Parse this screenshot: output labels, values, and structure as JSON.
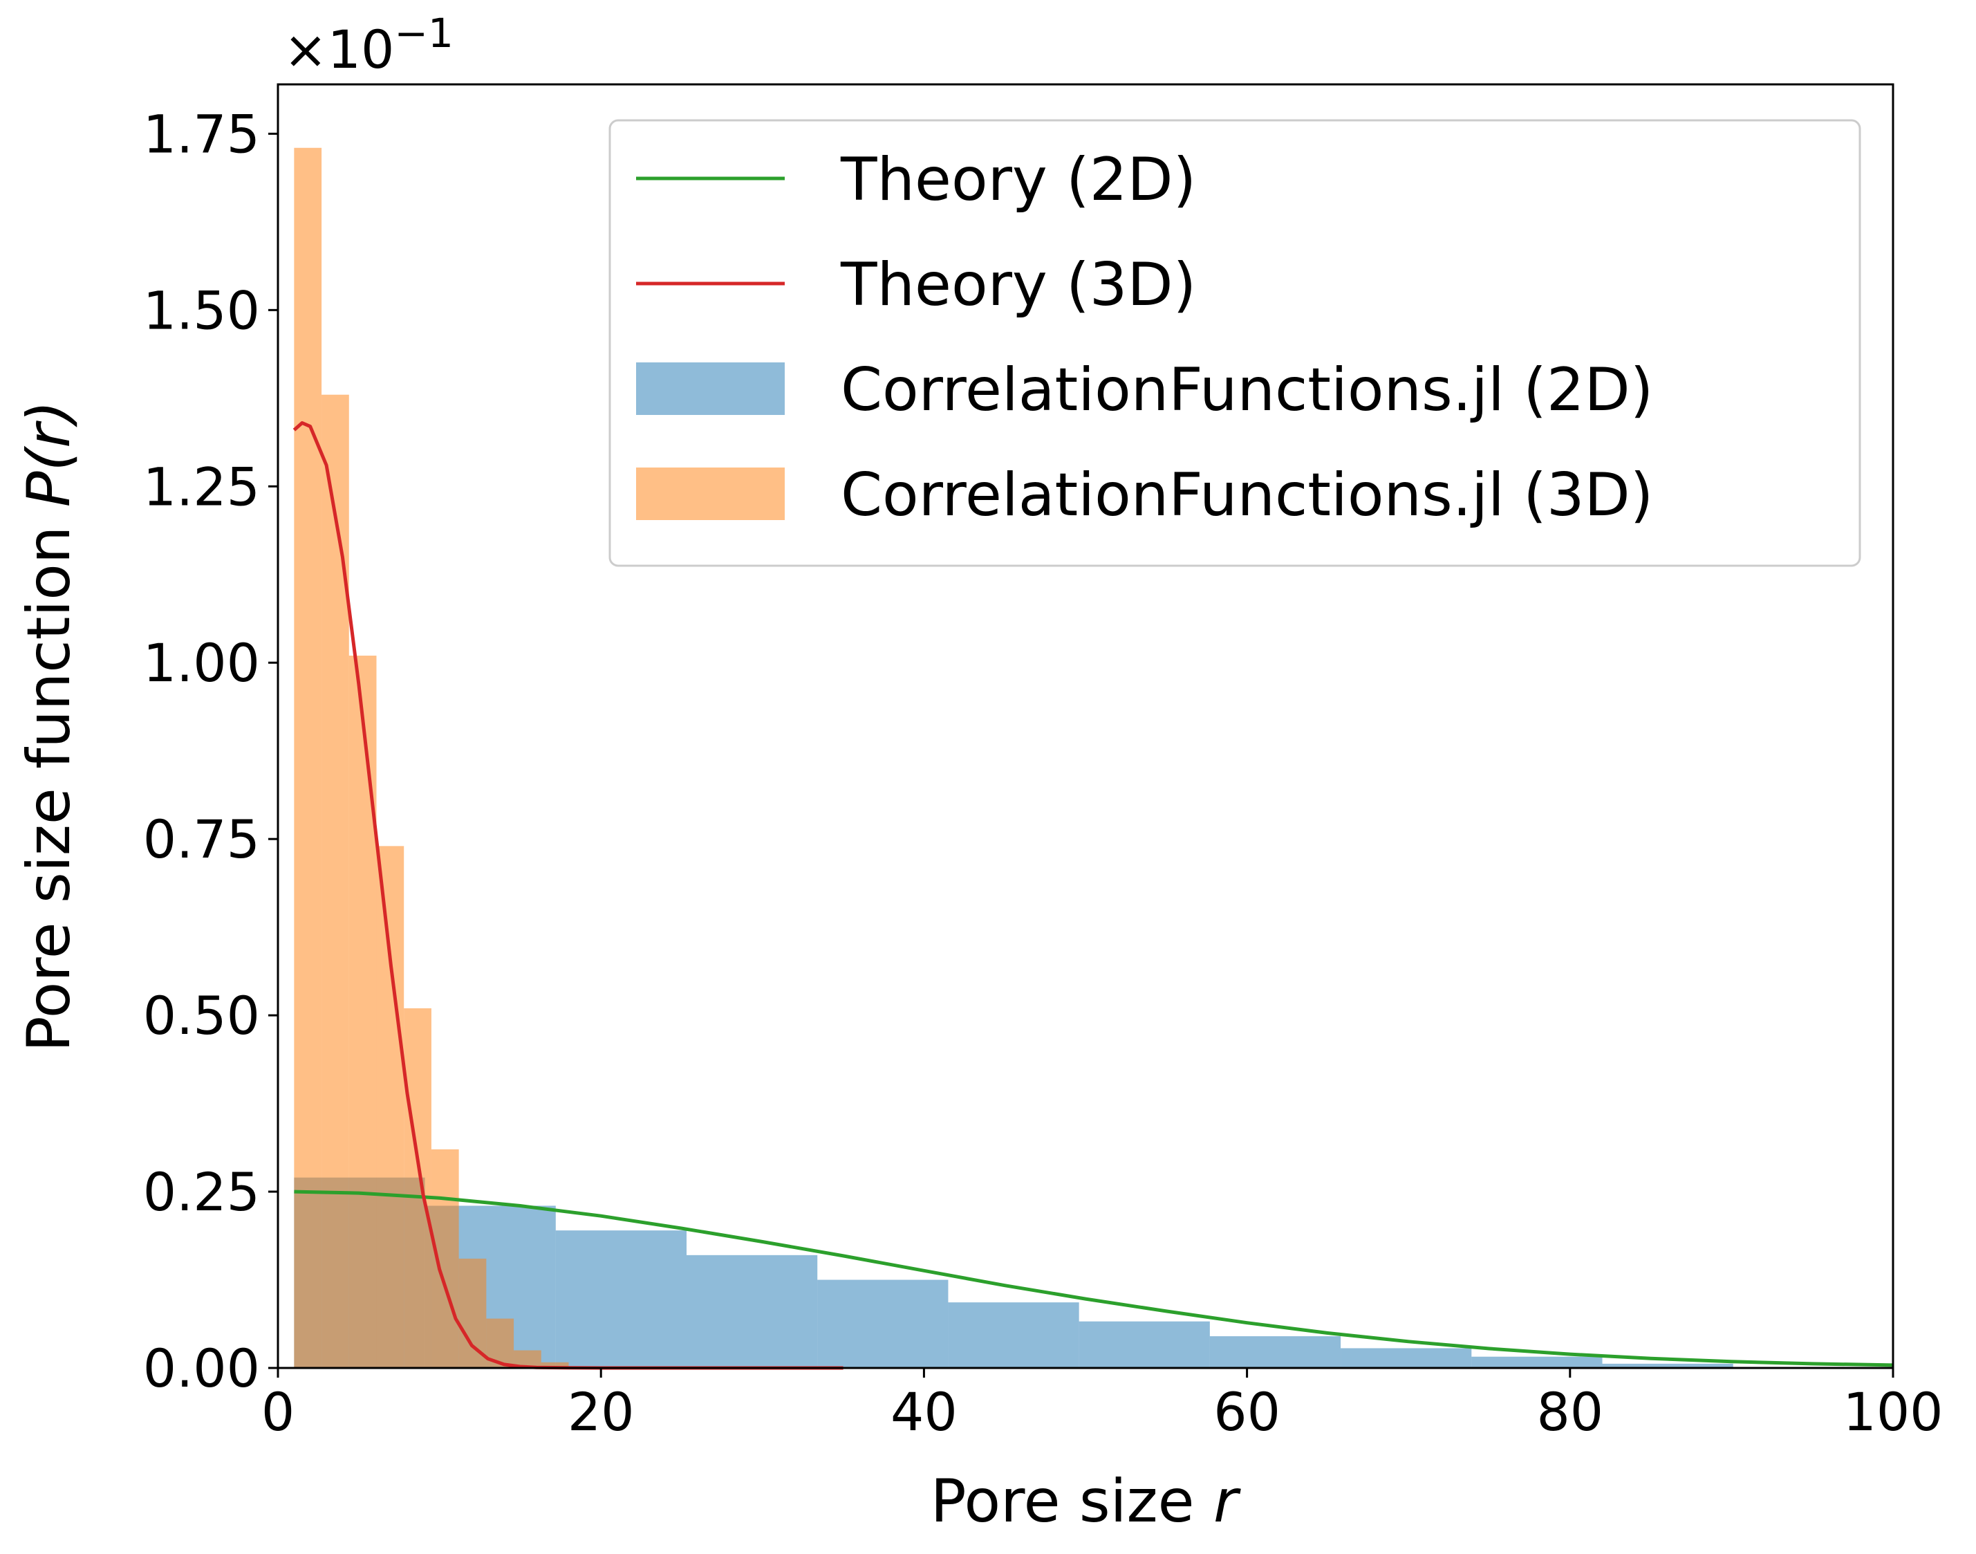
{
  "chart_data": {
    "type": "bar",
    "multiplier_label": "×10",
    "multiplier_exponent": "−1",
    "xlabel": "Pore size",
    "xlabel_var": "r",
    "ylabel": "Pore size function",
    "ylabel_var": "P(r)",
    "xlim": [
      0,
      100
    ],
    "ylim": [
      0,
      1.82
    ],
    "x_ticks": [
      0,
      20,
      40,
      60,
      80,
      100
    ],
    "x_tick_labels": [
      "0",
      "20",
      "40",
      "60",
      "80",
      "100"
    ],
    "y_ticks": [
      0,
      0.25,
      0.5,
      0.75,
      1.0,
      1.25,
      1.5,
      1.75
    ],
    "y_tick_labels": [
      "0.00",
      "0.25",
      "0.50",
      "0.75",
      "1.00",
      "1.25",
      "1.50",
      "1.75"
    ],
    "grid": false,
    "legend_position": "top-right",
    "colors": {
      "hist_2d": "#1f77b4",
      "hist_3d": "#ff7f0e",
      "theory_2d": "#2ca02c",
      "theory_3d": "#d62728"
    },
    "legend": [
      {
        "label": "Theory (2D)",
        "kind": "line",
        "color": "#2ca02c"
      },
      {
        "label": "Theory (3D)",
        "kind": "line",
        "color": "#d62728"
      },
      {
        "label": "CorrelationFunctions.jl (2D)",
        "kind": "patch",
        "color": "#8fbbd9"
      },
      {
        "label": "CorrelationFunctions.jl (3D)",
        "kind": "patch",
        "color": "#ffbf86"
      }
    ],
    "series": [
      {
        "name": "CorrelationFunctions.jl (2D)",
        "kind": "histogram",
        "color": "#1f77b4",
        "opacity": 0.5,
        "bin_edges": [
          1,
          9.1,
          17.2,
          25.3,
          33.4,
          41.5,
          49.6,
          57.7,
          65.8,
          73.9,
          82.0,
          90.1
        ],
        "values": [
          0.27,
          0.23,
          0.195,
          0.16,
          0.125,
          0.093,
          0.066,
          0.045,
          0.028,
          0.016,
          0.006
        ]
      },
      {
        "name": "CorrelationFunctions.jl (3D)",
        "kind": "histogram",
        "color": "#ff7f0e",
        "opacity": 0.5,
        "bin_edges": [
          1,
          2.7,
          4.4,
          6.1,
          7.8,
          9.5,
          11.2,
          12.9,
          14.6,
          16.3,
          18.0
        ],
        "values": [
          1.73,
          1.38,
          1.01,
          0.74,
          0.51,
          0.31,
          0.155,
          0.07,
          0.025,
          0.008
        ]
      },
      {
        "name": "Theory (2D)",
        "kind": "line",
        "color": "#2ca02c",
        "x": [
          1,
          5,
          10,
          15,
          20,
          25,
          30,
          35,
          40,
          45,
          50,
          55,
          60,
          65,
          70,
          75,
          80,
          85,
          90,
          95,
          100
        ],
        "y": [
          0.25,
          0.248,
          0.241,
          0.23,
          0.2155,
          0.198,
          0.179,
          0.159,
          0.138,
          0.117,
          0.098,
          0.0805,
          0.064,
          0.0495,
          0.0375,
          0.0275,
          0.0195,
          0.0135,
          0.009,
          0.006,
          0.004
        ]
      },
      {
        "name": "Theory (3D)",
        "kind": "line",
        "color": "#d62728",
        "x": [
          1,
          1.5,
          2,
          3,
          4,
          5,
          6,
          7,
          8,
          9,
          10,
          11,
          12,
          13,
          14,
          15,
          16,
          18,
          20,
          25,
          30,
          35
        ],
        "y": [
          1.33,
          1.34,
          1.335,
          1.28,
          1.15,
          0.97,
          0.77,
          0.57,
          0.39,
          0.245,
          0.14,
          0.07,
          0.032,
          0.013,
          0.005,
          0.002,
          0.0008,
          0.0002,
          0.0,
          0.0,
          0.0,
          0.0
        ]
      }
    ]
  }
}
